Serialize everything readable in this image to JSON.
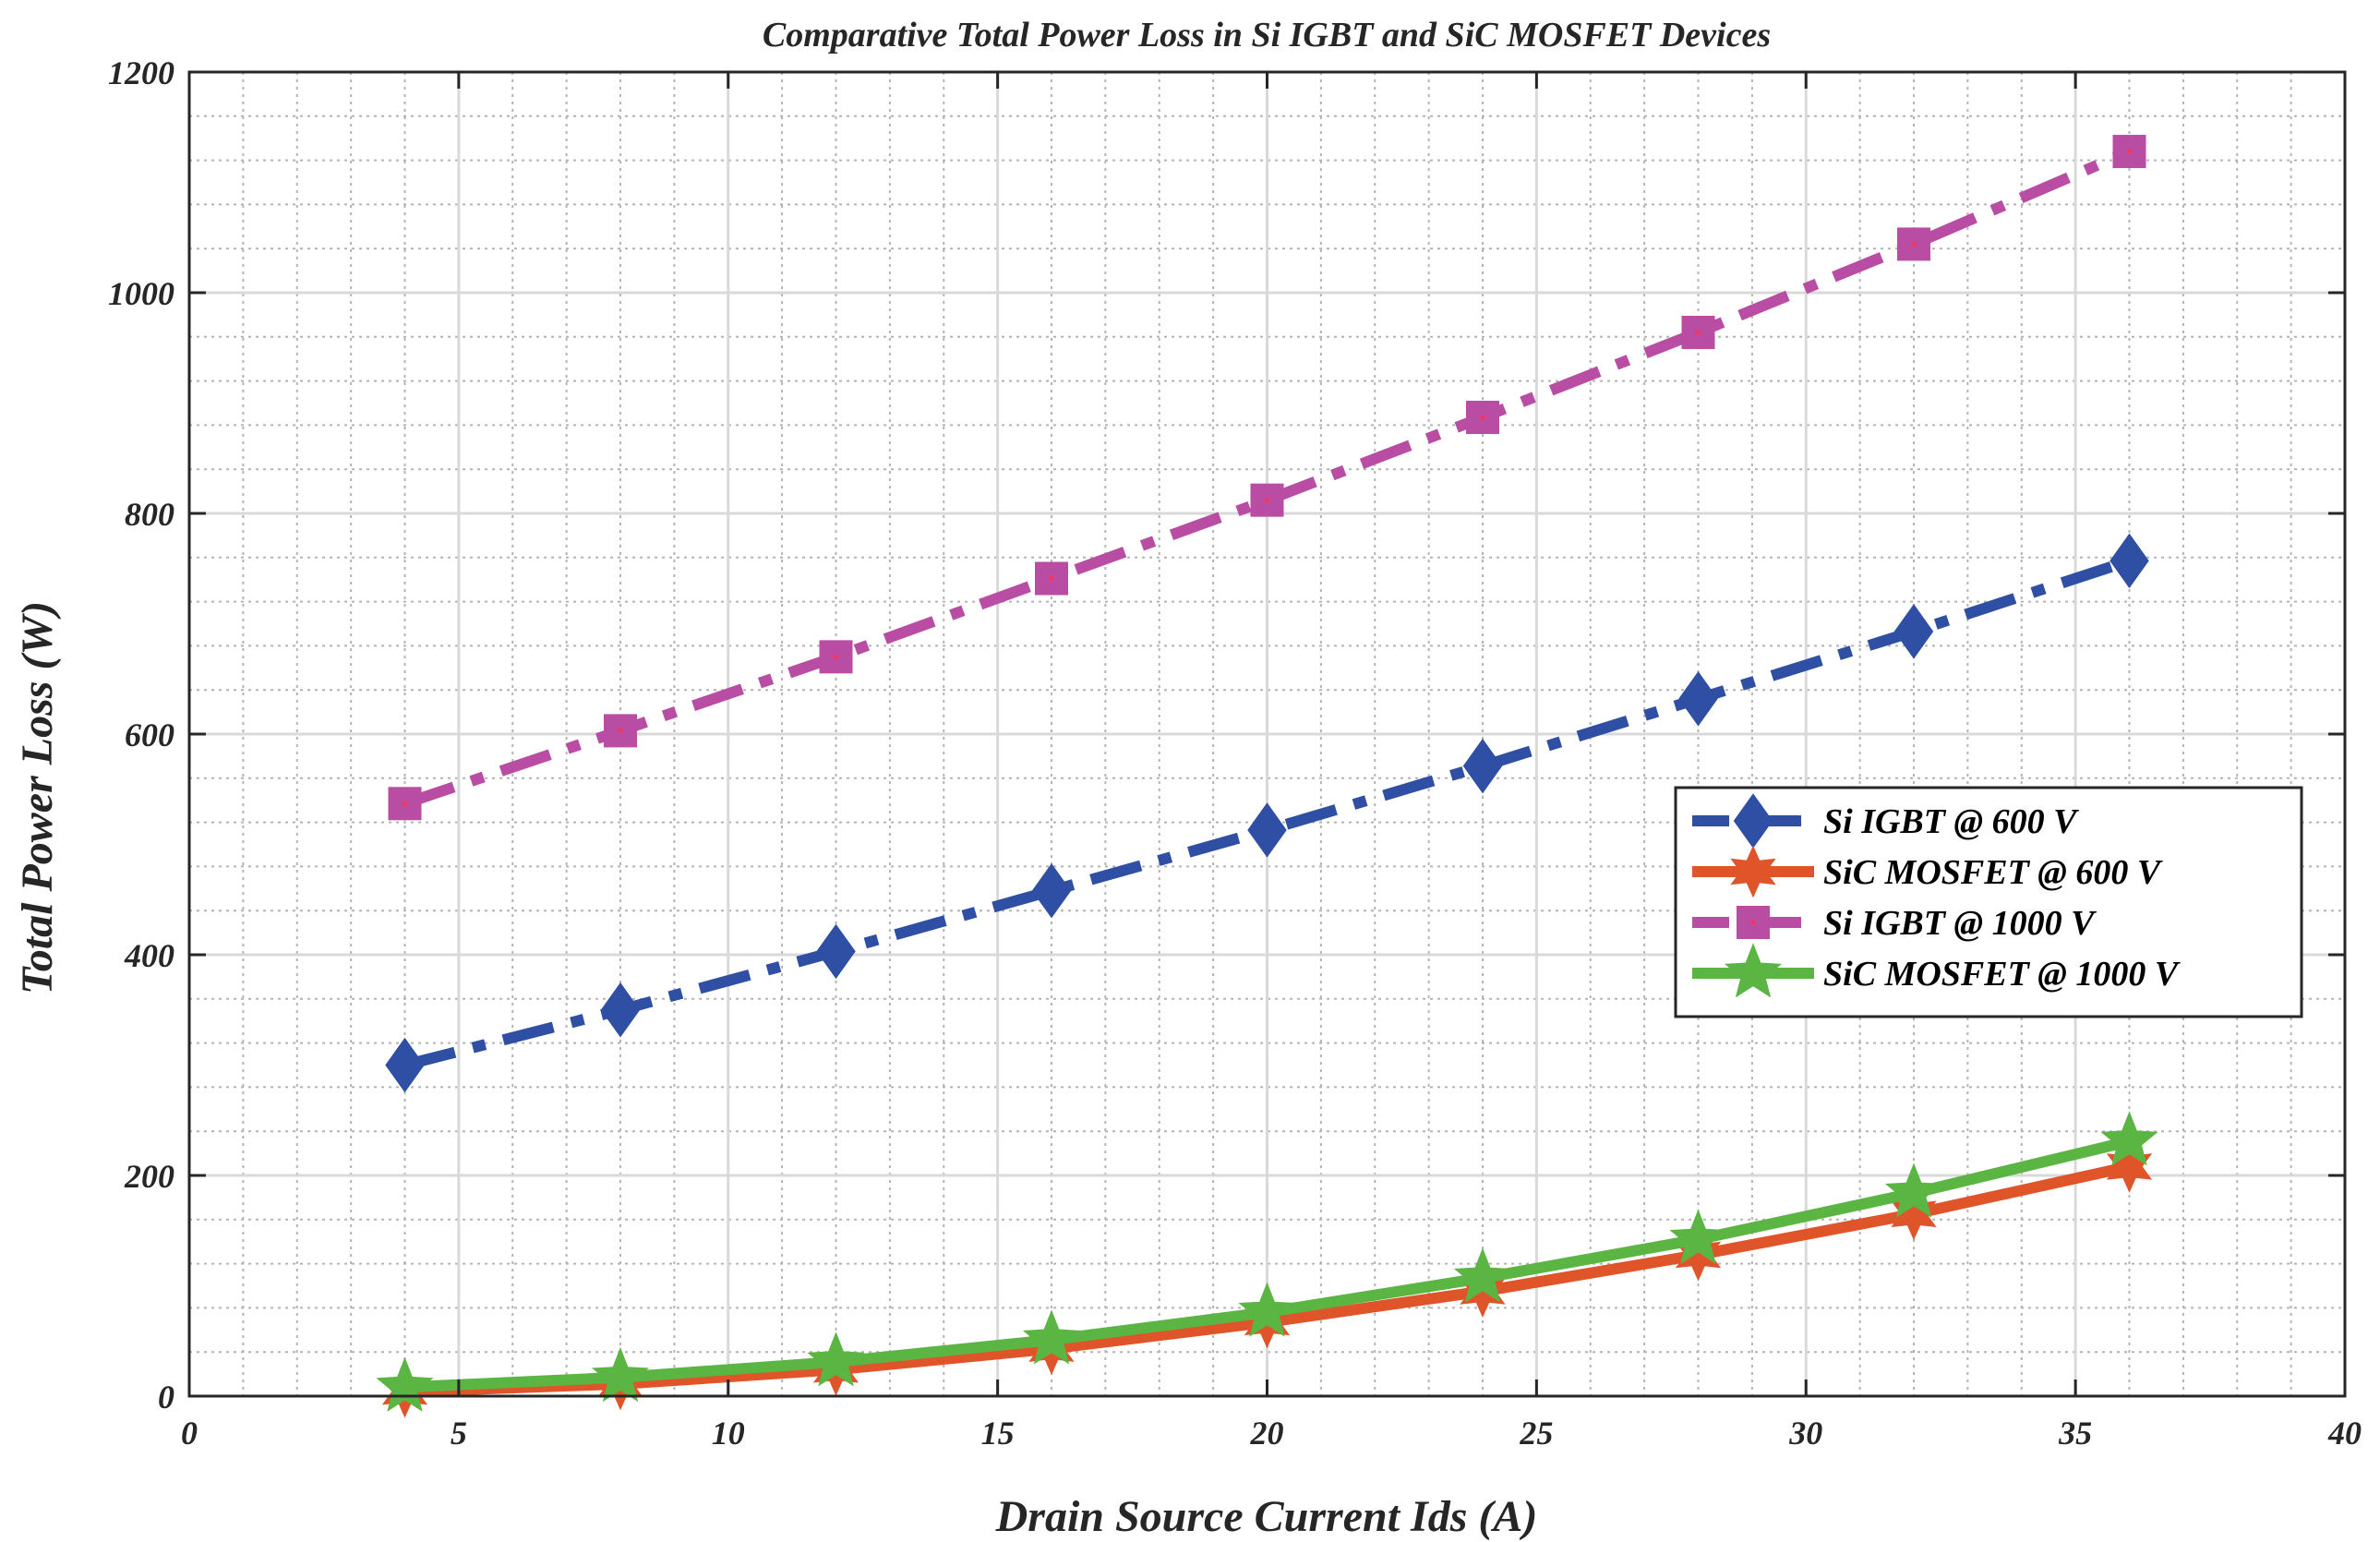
{
  "chart_data": {
    "type": "line",
    "title": "Comparative Total Power Loss in Si IGBT and SiC MOSFET Devices",
    "xlabel": "Drain Source Current  Ids (A)",
    "ylabel": "Total Power Loss (W)",
    "xlim": [
      0,
      40
    ],
    "ylim": [
      0,
      1200
    ],
    "xticks": [
      0,
      5,
      10,
      15,
      20,
      25,
      30,
      35,
      40
    ],
    "yticks": [
      0,
      200,
      400,
      600,
      800,
      1000,
      1200
    ],
    "grid": true,
    "legend_position": "center-right",
    "x": [
      4,
      8,
      12,
      16,
      20,
      24,
      28,
      32,
      36
    ],
    "series": [
      {
        "name": "Si IGBT @ 600 V",
        "color": "#2E4FA3",
        "style": "dashdot",
        "marker": "diamond",
        "values": [
          300,
          350,
          403,
          458,
          513,
          571,
          632,
          693,
          757
        ]
      },
      {
        "name": "SiC MOSFET @ 600 V",
        "color": "#E0542A",
        "style": "solid",
        "marker": "hexagram",
        "values": [
          4,
          11,
          24,
          43,
          67,
          95,
          128,
          165,
          208
        ]
      },
      {
        "name": "Si IGBT @ 1000 V",
        "color": "#B94DA3",
        "style": "dashdot",
        "marker": "square",
        "values": [
          537,
          603,
          670,
          741,
          812,
          887,
          964,
          1044,
          1128
        ]
      },
      {
        "name": "SiC MOSFET @ 1000 V",
        "color": "#5BB543",
        "style": "solid",
        "marker": "pentagram",
        "values": [
          8,
          17,
          31,
          51,
          76,
          107,
          142,
          184,
          231
        ]
      }
    ]
  }
}
